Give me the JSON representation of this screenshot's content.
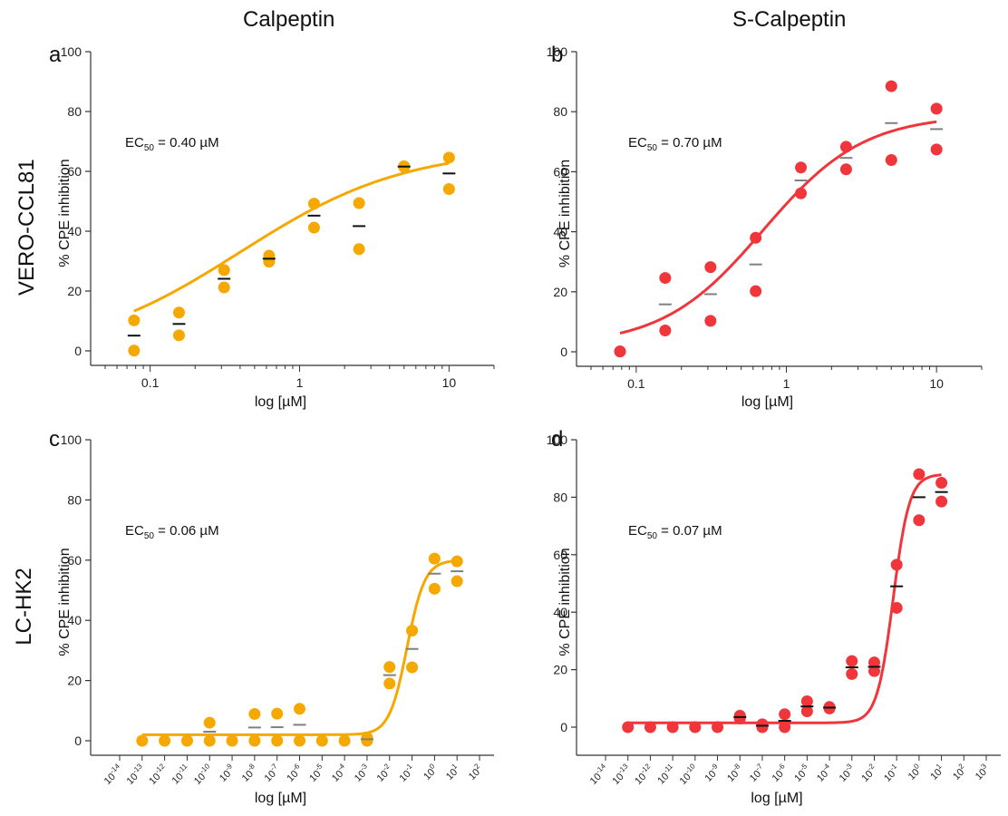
{
  "figure": {
    "col_titles": [
      "Calpeptin",
      "S-Calpeptin"
    ],
    "row_titles": [
      "VERO-CCL81",
      "LC-HK2"
    ]
  },
  "chart_data": [
    {
      "panel": "a",
      "type": "scatter",
      "xscale": "log",
      "xlabel": "log [µM]",
      "ylabel": "% CPE inhibition",
      "ylim": [
        0,
        100
      ],
      "xlim": [
        0.05,
        20
      ],
      "xticks": [
        0.1,
        1,
        10
      ],
      "xtick_labels": [
        "0.1",
        "1",
        "10"
      ],
      "yticks": [
        0,
        20,
        40,
        60,
        80,
        100
      ],
      "annotation": {
        "prefix": "EC",
        "sub": "50",
        "text": " = 0.40 µM"
      },
      "color": "#f5a800",
      "mean_color": "#111111",
      "points": [
        {
          "x": 0.078,
          "y": 10.2
        },
        {
          "x": 0.078,
          "y": 0.1
        },
        {
          "x": 0.156,
          "y": 12.8
        },
        {
          "x": 0.156,
          "y": 5.2
        },
        {
          "x": 0.3125,
          "y": 27.0
        },
        {
          "x": 0.3125,
          "y": 21.2
        },
        {
          "x": 0.625,
          "y": 31.8
        },
        {
          "x": 0.625,
          "y": 29.8
        },
        {
          "x": 1.25,
          "y": 49.2
        },
        {
          "x": 1.25,
          "y": 41.2
        },
        {
          "x": 2.5,
          "y": 49.4
        },
        {
          "x": 2.5,
          "y": 34.0
        },
        {
          "x": 5,
          "y": 61.7
        },
        {
          "x": 5,
          "y": 61.5
        },
        {
          "x": 10,
          "y": 64.6
        },
        {
          "x": 10,
          "y": 54.1
        }
      ],
      "means": [
        {
          "x": 0.078,
          "y": 5.1
        },
        {
          "x": 0.156,
          "y": 9.0
        },
        {
          "x": 0.3125,
          "y": 24.1
        },
        {
          "x": 0.625,
          "y": 30.8
        },
        {
          "x": 1.25,
          "y": 45.2
        },
        {
          "x": 2.5,
          "y": 41.7
        },
        {
          "x": 5,
          "y": 61.6
        },
        {
          "x": 10,
          "y": 59.3
        }
      ],
      "fit": {
        "bottom": -2,
        "top": 68,
        "ec50": 0.4,
        "hill": 0.78
      }
    },
    {
      "panel": "b",
      "type": "scatter",
      "xscale": "log",
      "xlabel": "log [µM]",
      "ylabel": "% CPE inhibition",
      "ylim": [
        0,
        100
      ],
      "xlim": [
        0.05,
        20
      ],
      "xticks": [
        0.1,
        1,
        10
      ],
      "xtick_labels": [
        "0.1",
        "1",
        "10"
      ],
      "yticks": [
        0,
        20,
        40,
        60,
        80,
        100
      ],
      "annotation": {
        "prefix": "EC",
        "sub": "50",
        "text": " = 0.70 µM"
      },
      "color": "#f0353b",
      "mean_color": "#808080",
      "points": [
        {
          "x": 0.078,
          "y": 0.1
        },
        {
          "x": 0.078,
          "y": 0.1
        },
        {
          "x": 0.156,
          "y": 24.6
        },
        {
          "x": 0.156,
          "y": 7.1
        },
        {
          "x": 0.3125,
          "y": 28.2
        },
        {
          "x": 0.3125,
          "y": 10.3
        },
        {
          "x": 0.625,
          "y": 38.0
        },
        {
          "x": 0.625,
          "y": 20.2
        },
        {
          "x": 1.25,
          "y": 61.4
        },
        {
          "x": 1.25,
          "y": 52.8
        },
        {
          "x": 2.5,
          "y": 68.3
        },
        {
          "x": 2.5,
          "y": 60.8
        },
        {
          "x": 5,
          "y": 88.5
        },
        {
          "x": 5,
          "y": 63.9
        },
        {
          "x": 10,
          "y": 81.0
        },
        {
          "x": 10,
          "y": 67.4
        }
      ],
      "means": [
        {
          "x": 0.156,
          "y": 15.8
        },
        {
          "x": 0.3125,
          "y": 19.2
        },
        {
          "x": 0.625,
          "y": 29.1
        },
        {
          "x": 1.25,
          "y": 57.1
        },
        {
          "x": 2.5,
          "y": 64.6
        },
        {
          "x": 5,
          "y": 76.2
        },
        {
          "x": 10,
          "y": 74.2
        }
      ],
      "fit": {
        "bottom": 2,
        "top": 79,
        "ec50": 0.7,
        "hill": 1.3
      }
    },
    {
      "panel": "c",
      "type": "scatter",
      "xscale": "log",
      "xlabel": "log [µM]",
      "ylabel": "% CPE inhibition",
      "ylim": [
        0,
        100
      ],
      "xlim_exp": [
        -14,
        2
      ],
      "tick_exps": [
        -14,
        -13,
        -12,
        -11,
        -10,
        -9,
        -8,
        -7,
        -6,
        -5,
        -4,
        -3,
        -2,
        -1,
        0,
        1,
        2
      ],
      "yticks": [
        0,
        20,
        40,
        60,
        80,
        100
      ],
      "annotation": {
        "prefix": "EC",
        "sub": "50",
        "text": " = 0.06 µM"
      },
      "color": "#f5a800",
      "mean_color": "#808080",
      "points": [
        {
          "x": -13,
          "y": 0
        },
        {
          "x": -12,
          "y": 0
        },
        {
          "x": -11,
          "y": 0
        },
        {
          "x": -10,
          "y": 6.0
        },
        {
          "x": -10,
          "y": 0
        },
        {
          "x": -9,
          "y": 0
        },
        {
          "x": -8,
          "y": 8.9
        },
        {
          "x": -8,
          "y": 0
        },
        {
          "x": -7,
          "y": 9.0
        },
        {
          "x": -7,
          "y": 0
        },
        {
          "x": -6,
          "y": 10.6
        },
        {
          "x": -6,
          "y": 0
        },
        {
          "x": -5,
          "y": 0
        },
        {
          "x": -4,
          "y": 0
        },
        {
          "x": -3,
          "y": 1.0
        },
        {
          "x": -3,
          "y": 0
        },
        {
          "x": -2,
          "y": 24.5
        },
        {
          "x": -2,
          "y": 19.0
        },
        {
          "x": -1,
          "y": 36.6
        },
        {
          "x": -1,
          "y": 24.4
        },
        {
          "x": 0,
          "y": 60.5
        },
        {
          "x": 0,
          "y": 50.5
        },
        {
          "x": 1,
          "y": 59.6
        },
        {
          "x": 1,
          "y": 53.0
        }
      ],
      "means": [
        {
          "x": -10,
          "y": 3.0
        },
        {
          "x": -8,
          "y": 4.4
        },
        {
          "x": -7,
          "y": 4.5
        },
        {
          "x": -6,
          "y": 5.3
        },
        {
          "x": -3,
          "y": 0.5
        },
        {
          "x": -2,
          "y": 21.8
        },
        {
          "x": -1,
          "y": 30.5
        },
        {
          "x": 0,
          "y": 55.5
        },
        {
          "x": 1,
          "y": 56.3
        }
      ],
      "fit": {
        "bottom": 2,
        "top": 60,
        "ec50": 0.06,
        "hill": 1.1
      }
    },
    {
      "panel": "d",
      "type": "scatter",
      "xscale": "log",
      "xlabel": "log [µM]",
      "ylabel": "% CPE inhibition",
      "ylim": [
        -10,
        100
      ],
      "xlim_exp": [
        -14,
        3
      ],
      "tick_exps": [
        -14,
        -13,
        -12,
        -11,
        -10,
        -9,
        -8,
        -7,
        -6,
        -5,
        -4,
        -3,
        -2,
        -1,
        0,
        1,
        2,
        3
      ],
      "yticks": [
        0,
        20,
        40,
        60,
        80,
        100
      ],
      "annotation": {
        "prefix": "EC",
        "sub": "50",
        "text": " = 0.07 µM"
      },
      "color": "#f0353b",
      "mean_color": "#111111",
      "points": [
        {
          "x": -13,
          "y": 0
        },
        {
          "x": -12,
          "y": 0
        },
        {
          "x": -11,
          "y": 0
        },
        {
          "x": -10,
          "y": 0
        },
        {
          "x": -9,
          "y": 0
        },
        {
          "x": -8,
          "y": 4.0
        },
        {
          "x": -8,
          "y": 3.0
        },
        {
          "x": -7,
          "y": 1.0
        },
        {
          "x": -7,
          "y": 0
        },
        {
          "x": -6,
          "y": 4.5
        },
        {
          "x": -6,
          "y": 0
        },
        {
          "x": -5,
          "y": 9.0
        },
        {
          "x": -5,
          "y": 5.5
        },
        {
          "x": -4,
          "y": 7.0
        },
        {
          "x": -4,
          "y": 6.5
        },
        {
          "x": -3,
          "y": 23.0
        },
        {
          "x": -3,
          "y": 18.5
        },
        {
          "x": -2,
          "y": 22.5
        },
        {
          "x": -2,
          "y": 19.5
        },
        {
          "x": -1,
          "y": 56.5
        },
        {
          "x": -1,
          "y": 41.5
        },
        {
          "x": 0,
          "y": 88.0
        },
        {
          "x": 0,
          "y": 72.0
        },
        {
          "x": 1,
          "y": 85.0
        },
        {
          "x": 1,
          "y": 78.5
        }
      ],
      "means": [
        {
          "x": -8,
          "y": 3.5
        },
        {
          "x": -7,
          "y": 0.5
        },
        {
          "x": -6,
          "y": 2.2
        },
        {
          "x": -5,
          "y": 7.2
        },
        {
          "x": -4,
          "y": 6.8
        },
        {
          "x": -3,
          "y": 20.8
        },
        {
          "x": -2,
          "y": 21.0
        },
        {
          "x": -1,
          "y": 49.0
        },
        {
          "x": 0,
          "y": 80.0
        },
        {
          "x": 1,
          "y": 81.8
        }
      ],
      "fit": {
        "bottom": 1.5,
        "top": 88,
        "ec50": 0.07,
        "hill": 1.2
      }
    }
  ]
}
